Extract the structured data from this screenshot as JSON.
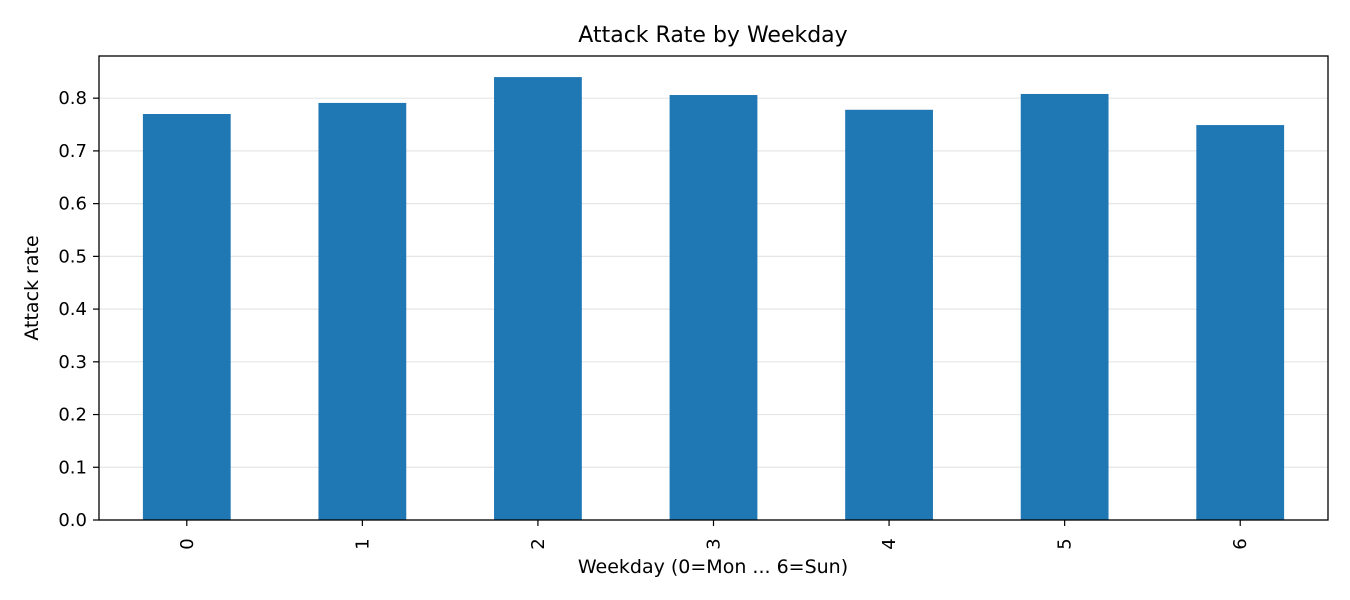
{
  "chart_data": {
    "type": "bar",
    "title": "Attack Rate by Weekday",
    "xlabel": "Weekday (0=Mon ... 6=Sun)",
    "ylabel": "Attack rate",
    "categories": [
      "0",
      "1",
      "2",
      "3",
      "4",
      "5",
      "6"
    ],
    "values": [
      0.77,
      0.791,
      0.84,
      0.806,
      0.778,
      0.808,
      0.749
    ],
    "ylim": [
      0,
      0.88
    ],
    "yticks": [
      0.0,
      0.1,
      0.2,
      0.3,
      0.4,
      0.5,
      0.6,
      0.7,
      0.8
    ],
    "ytick_labels": [
      "0.0",
      "0.1",
      "0.2",
      "0.3",
      "0.4",
      "0.5",
      "0.6",
      "0.7",
      "0.8"
    ],
    "grid": "y",
    "bar_color": "#1f77b4",
    "legend": "none"
  }
}
